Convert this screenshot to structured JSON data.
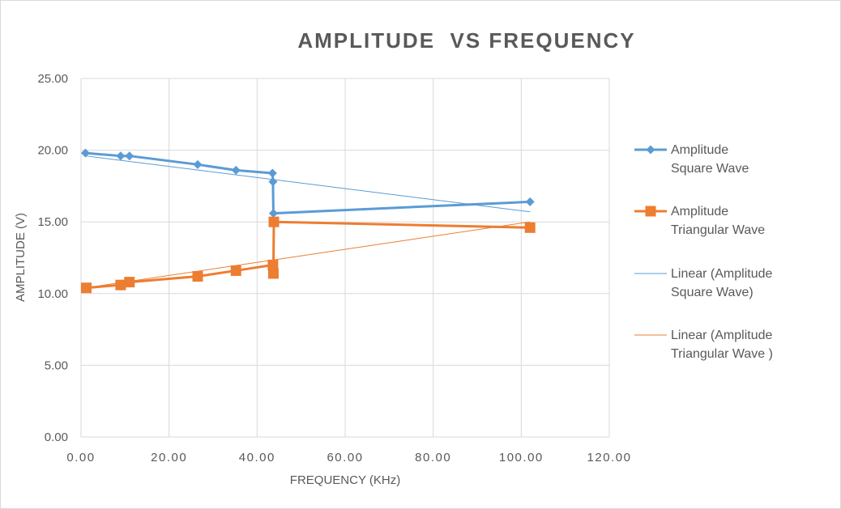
{
  "chart_data": {
    "type": "scatter",
    "title": "AMPLITUDE  VS FREQUENCY",
    "xlabel": "FREQUENCY (KHz)",
    "ylabel": "AMPLITUDE (V)",
    "xlim": [
      0,
      120
    ],
    "ylim": [
      0,
      25
    ],
    "x_ticks": [
      "0.00",
      "20.00",
      "40.00",
      "60.00",
      "80.00",
      "100.00",
      "120.00"
    ],
    "y_ticks": [
      "0.00",
      "5.00",
      "10.00",
      "15.00",
      "20.00",
      "25.00"
    ],
    "grid": true,
    "legend_position": "right",
    "series": [
      {
        "name": "Amplitude Square Wave",
        "legend_lines": [
          "Amplitude",
          "Square Wave"
        ],
        "color": "#5b9bd5",
        "marker": "diamond",
        "x": [
          1,
          9,
          11,
          26.5,
          35.2,
          43.5,
          43.6,
          43.7,
          102
        ],
        "y": [
          19.8,
          19.6,
          19.6,
          19.0,
          18.6,
          18.4,
          17.8,
          15.6,
          16.4
        ]
      },
      {
        "name": "Amplitude Triangular Wave",
        "legend_lines": [
          "Amplitude",
          "Triangular Wave"
        ],
        "color": "#ed7d31",
        "marker": "square",
        "x": [
          1.2,
          9,
          11,
          26.5,
          35.2,
          43.6,
          43.7,
          43.8,
          102
        ],
        "y": [
          10.4,
          10.6,
          10.8,
          11.2,
          11.6,
          12.0,
          11.4,
          15.0,
          14.6
        ]
      }
    ],
    "trendlines": [
      {
        "name": "Linear (Amplitude Square Wave)",
        "legend_lines": [
          "Linear (Amplitude",
          "Square Wave)"
        ],
        "color": "#5b9bd5",
        "x": [
          1,
          102
        ],
        "y": [
          19.6,
          15.7
        ]
      },
      {
        "name": "Linear (Amplitude Triangular Wave )",
        "legend_lines": [
          "Linear (Amplitude",
          "Triangular Wave )"
        ],
        "color": "#ed7d31",
        "x": [
          1,
          102
        ],
        "y": [
          10.4,
          15.0
        ]
      }
    ]
  }
}
